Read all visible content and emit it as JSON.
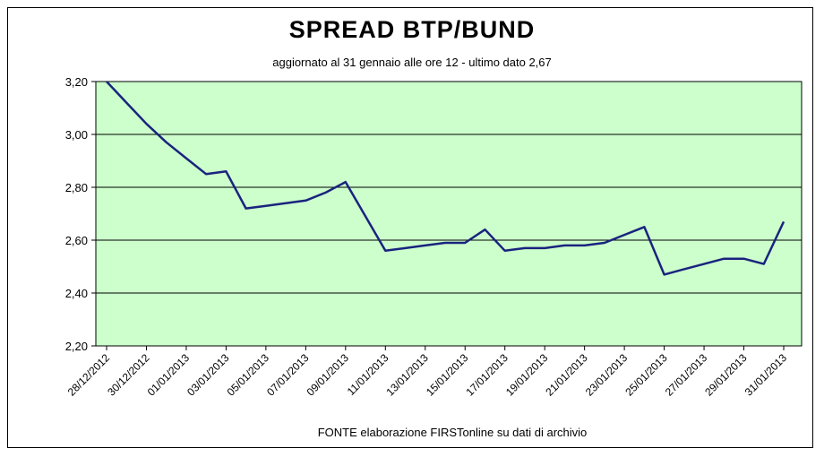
{
  "chart_data": {
    "type": "line",
    "title": "SPREAD  BTP/BUND",
    "subtitle": "aggiornato al 31 gennaio alle ore 12 - ultimo dato 2,67",
    "source": "FONTE elaborazione FIRSTonline su dati di archivio",
    "xlabel": "",
    "ylabel": "",
    "ylim": [
      2.2,
      3.2
    ],
    "yticks": [
      "2,20",
      "2,40",
      "2,60",
      "2,80",
      "3,00",
      "3,20"
    ],
    "ytick_values": [
      2.2,
      2.4,
      2.6,
      2.8,
      3.0,
      3.2
    ],
    "xtick_labels": [
      "28/12/2012",
      "30/12/2012",
      "01/01/2013",
      "03/01/2013",
      "05/01/2013",
      "07/01/2013",
      "09/01/2013",
      "11/01/2013",
      "13/01/2013",
      "15/01/2013",
      "17/01/2013",
      "19/01/2013",
      "21/01/2013",
      "23/01/2013",
      "25/01/2013",
      "27/01/2013",
      "29/01/2013",
      "31/01/2013"
    ],
    "grid": true,
    "line_color": "#1a237e",
    "plot_background": "#ccffcc",
    "series": [
      {
        "x": [
          "28/12/2012",
          "29/12/2012",
          "30/12/2012",
          "31/12/2012",
          "01/01/2013",
          "02/01/2013",
          "03/01/2013",
          "04/01/2013",
          "05/01/2013",
          "06/01/2013",
          "07/01/2013",
          "08/01/2013",
          "09/01/2013",
          "10/01/2013",
          "11/01/2013",
          "12/01/2013",
          "13/01/2013",
          "14/01/2013",
          "15/01/2013",
          "16/01/2013",
          "17/01/2013",
          "18/01/2013",
          "19/01/2013",
          "20/01/2013",
          "21/01/2013",
          "22/01/2013",
          "23/01/2013",
          "24/01/2013",
          "25/01/2013",
          "26/01/2013",
          "27/01/2013",
          "28/01/2013",
          "29/01/2013",
          "30/01/2013",
          "31/01/2013"
        ],
        "values": [
          3.2,
          3.12,
          3.04,
          2.97,
          2.91,
          2.85,
          2.86,
          2.72,
          2.73,
          2.74,
          2.75,
          2.78,
          2.82,
          2.69,
          2.56,
          2.57,
          2.58,
          2.59,
          2.59,
          2.64,
          2.56,
          2.57,
          2.57,
          2.58,
          2.58,
          2.59,
          2.62,
          2.65,
          2.47,
          2.49,
          2.51,
          2.53,
          2.53,
          2.51,
          2.67
        ]
      }
    ]
  }
}
